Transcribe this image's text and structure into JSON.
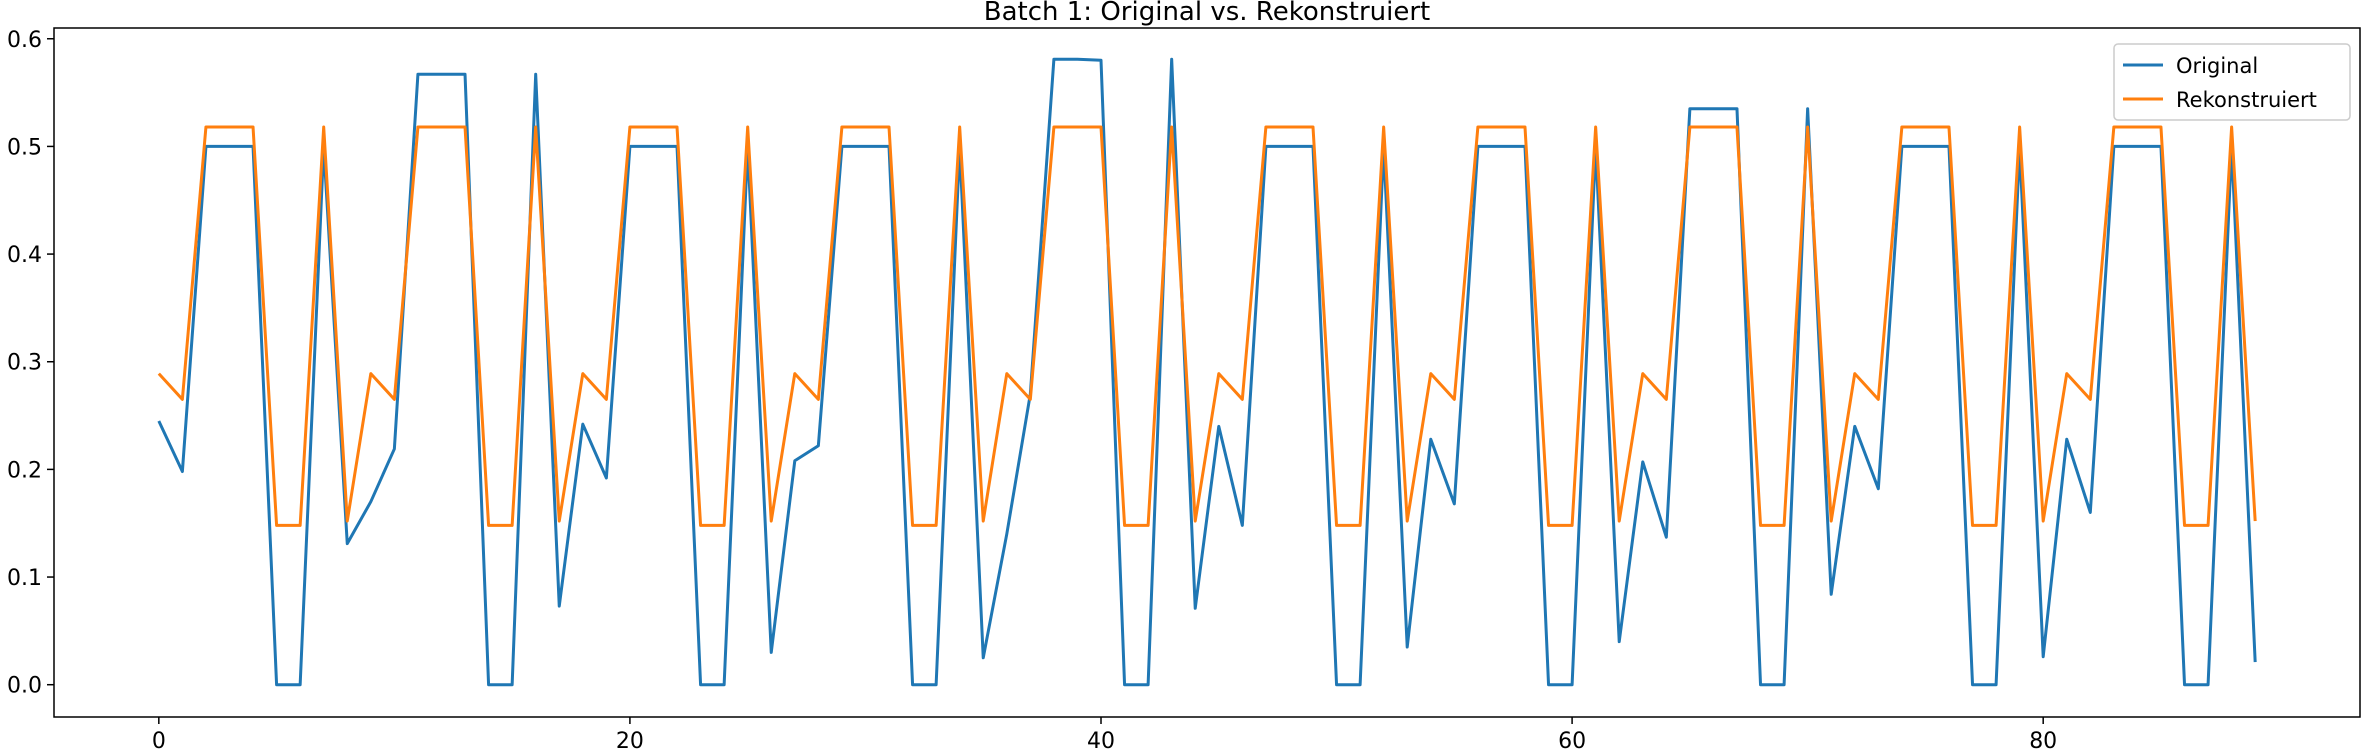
{
  "chart_data": {
    "type": "line",
    "title": "Batch 1: Original vs. Rekonstruiert",
    "xlabel": "",
    "ylabel": "",
    "xlim": [
      -4.45,
      93.45
    ],
    "ylim": [
      -0.03,
      0.61
    ],
    "xticks": [
      0,
      20,
      40,
      60,
      80
    ],
    "yticks": [
      0.0,
      0.1,
      0.2,
      0.3,
      0.4,
      0.5,
      0.6
    ],
    "xtick_labels": [
      "0",
      "20",
      "40",
      "60",
      "80"
    ],
    "ytick_labels": [
      "0.0",
      "0.1",
      "0.2",
      "0.3",
      "0.4",
      "0.5",
      "0.6"
    ],
    "grid": false,
    "legend_position": "top-right",
    "x": [
      0,
      1,
      2,
      3,
      4,
      5,
      6,
      7,
      8,
      9,
      10,
      11,
      12,
      13,
      14,
      15,
      16,
      17,
      18,
      19,
      20,
      21,
      22,
      23,
      24,
      25,
      26,
      27,
      28,
      29,
      30,
      31,
      32,
      33,
      34,
      35,
      36,
      37,
      38,
      39,
      40,
      41,
      42,
      43,
      44,
      45,
      46,
      47,
      48,
      49,
      50,
      51,
      52,
      53,
      54,
      55,
      56,
      57,
      58,
      59,
      60,
      61,
      62,
      63,
      64,
      65,
      66,
      67,
      68,
      69,
      70,
      71,
      72,
      73,
      74,
      75,
      76,
      77,
      78,
      79,
      80,
      81,
      82,
      83,
      84,
      85,
      86,
      87,
      88,
      89
    ],
    "series": [
      {
        "name": "Original",
        "color": "#1f77b4",
        "values": [
          0.245,
          0.198,
          0.5,
          0.5,
          0.5,
          0.0,
          0.0,
          0.5,
          0.131,
          0.17,
          0.219,
          0.567,
          0.567,
          0.567,
          0.0,
          0.0,
          0.567,
          0.073,
          0.242,
          0.192,
          0.5,
          0.5,
          0.5,
          0.0,
          0.0,
          0.5,
          0.03,
          0.208,
          0.222,
          0.5,
          0.5,
          0.5,
          0.0,
          0.0,
          0.5,
          0.025,
          0.14,
          0.27,
          0.581,
          0.581,
          0.58,
          0.0,
          0.0,
          0.581,
          0.071,
          0.24,
          0.148,
          0.5,
          0.5,
          0.5,
          0.0,
          0.0,
          0.5,
          0.035,
          0.228,
          0.168,
          0.5,
          0.5,
          0.5,
          0.0,
          0.0,
          0.5,
          0.04,
          0.207,
          0.137,
          0.535,
          0.535,
          0.535,
          0.0,
          0.0,
          0.535,
          0.084,
          0.24,
          0.182,
          0.5,
          0.5,
          0.5,
          0.0,
          0.0,
          0.5,
          0.026,
          0.228,
          0.16,
          0.5,
          0.5,
          0.5,
          0.0,
          0.0,
          0.5,
          0.021
        ]
      },
      {
        "name": "Rekonstruiert",
        "color": "#ff7f0e",
        "values": [
          0.289,
          0.265,
          0.518,
          0.518,
          0.518,
          0.148,
          0.148,
          0.518,
          0.152,
          0.289,
          0.265,
          0.518,
          0.518,
          0.518,
          0.148,
          0.148,
          0.518,
          0.152,
          0.289,
          0.265,
          0.518,
          0.518,
          0.518,
          0.148,
          0.148,
          0.518,
          0.152,
          0.289,
          0.265,
          0.518,
          0.518,
          0.518,
          0.148,
          0.148,
          0.518,
          0.152,
          0.289,
          0.265,
          0.518,
          0.518,
          0.518,
          0.148,
          0.148,
          0.518,
          0.152,
          0.289,
          0.265,
          0.518,
          0.518,
          0.518,
          0.148,
          0.148,
          0.518,
          0.152,
          0.289,
          0.265,
          0.518,
          0.518,
          0.518,
          0.148,
          0.148,
          0.518,
          0.152,
          0.289,
          0.265,
          0.518,
          0.518,
          0.518,
          0.148,
          0.148,
          0.518,
          0.152,
          0.289,
          0.265,
          0.518,
          0.518,
          0.518,
          0.148,
          0.148,
          0.518,
          0.152,
          0.289,
          0.265,
          0.518,
          0.518,
          0.518,
          0.148,
          0.148,
          0.518,
          0.152
        ]
      }
    ]
  }
}
